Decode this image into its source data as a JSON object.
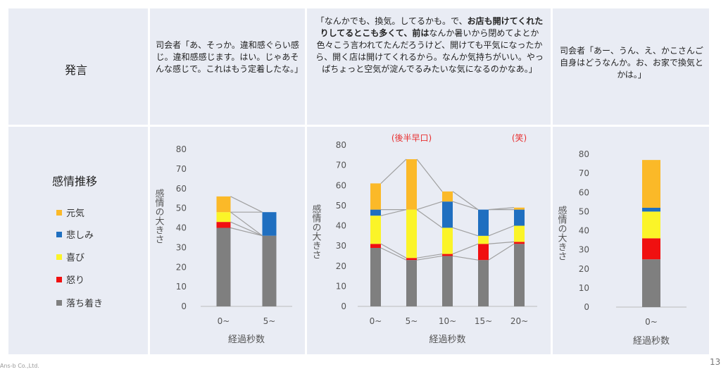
{
  "row_labels": {
    "speech": "発言",
    "emotion": "感情推移"
  },
  "speech": {
    "col1": "司会者「あ、そっか。違和感ぐらい感じ。違和感感じます。はい。じゃあそんな感じで。これはもう定着したな。」",
    "col2_pre": "「なんかでも、換気。してるかも。で、",
    "col2_bold": "お店も開けてくれたりしてるとこも多くて、前は",
    "col2_post": "なんか暑いから閉めてよとか色々こう言われてたんだろうけど、開けても平気になったから、開く店は開けてくれるから。なんか気持ちがいい。やっぱちょっと空気が淀んでるみたいな気になるのかなあ。」",
    "col3": "司会者「あー、うん、え、かこさんご自身はどうなんか。お、お家で換気とかは。」"
  },
  "legend": [
    {
      "label": "元気",
      "color": "#fbb928"
    },
    {
      "label": "悲しみ",
      "color": "#1f6fc0"
    },
    {
      "label": "喜び",
      "color": "#fbf428"
    },
    {
      "label": "怒り",
      "color": "#f01010"
    },
    {
      "label": "落ち着き",
      "color": "#7f7f7f"
    }
  ],
  "colors": {
    "grid_line": "#bbbbbb",
    "connector": "#a0a0a0",
    "annotation": "#e83030"
  },
  "chart_data": [
    {
      "type": "bar",
      "stacked": true,
      "categories": [
        "0~",
        "5~"
      ],
      "ylim": [
        0,
        80
      ],
      "yticks": [
        0,
        10,
        20,
        30,
        40,
        50,
        60,
        70,
        80
      ],
      "xlabel": "経過秒数",
      "ylabel": "感情の大きさ",
      "series": [
        {
          "name": "落ち着き",
          "values": [
            40,
            36
          ]
        },
        {
          "name": "怒り",
          "values": [
            3,
            0
          ]
        },
        {
          "name": "喜び",
          "values": [
            5,
            0
          ]
        },
        {
          "name": "悲しみ",
          "values": [
            0,
            12
          ]
        },
        {
          "name": "元気",
          "values": [
            8,
            0
          ]
        }
      ]
    },
    {
      "type": "bar",
      "stacked": true,
      "categories": [
        "0~",
        "5~",
        "10~",
        "15~",
        "20~"
      ],
      "ylim": [
        0,
        80
      ],
      "yticks": [
        0,
        10,
        20,
        30,
        40,
        50,
        60,
        70,
        80
      ],
      "xlabel": "経過秒数",
      "ylabel": "感情の大きさ",
      "annotations": [
        {
          "text": "(後半早口)",
          "category": "5~"
        },
        {
          "text": "(笑)",
          "category": "20~"
        }
      ],
      "series": [
        {
          "name": "落ち着き",
          "values": [
            29,
            23,
            25,
            23,
            31
          ]
        },
        {
          "name": "怒り",
          "values": [
            2,
            1,
            1,
            8,
            1
          ]
        },
        {
          "name": "喜び",
          "values": [
            14,
            24,
            13,
            4,
            8
          ]
        },
        {
          "name": "悲しみ",
          "values": [
            3,
            0,
            13,
            13,
            8
          ]
        },
        {
          "name": "元気",
          "values": [
            13,
            25,
            5,
            0,
            1
          ]
        }
      ]
    },
    {
      "type": "bar",
      "stacked": true,
      "categories": [
        "0~"
      ],
      "ylim": [
        0,
        80
      ],
      "yticks": [
        0,
        10,
        20,
        30,
        40,
        50,
        60,
        70,
        80
      ],
      "xlabel": "経過秒数",
      "ylabel": "感情の大きさ",
      "series": [
        {
          "name": "落ち着き",
          "values": [
            25
          ]
        },
        {
          "name": "怒り",
          "values": [
            11
          ]
        },
        {
          "name": "喜び",
          "values": [
            14
          ]
        },
        {
          "name": "悲しみ",
          "values": [
            2
          ]
        },
        {
          "name": "元気",
          "values": [
            25
          ]
        }
      ]
    }
  ],
  "footer": {
    "left": "Ans‑b Co.,Ltd.",
    "right": "13"
  }
}
